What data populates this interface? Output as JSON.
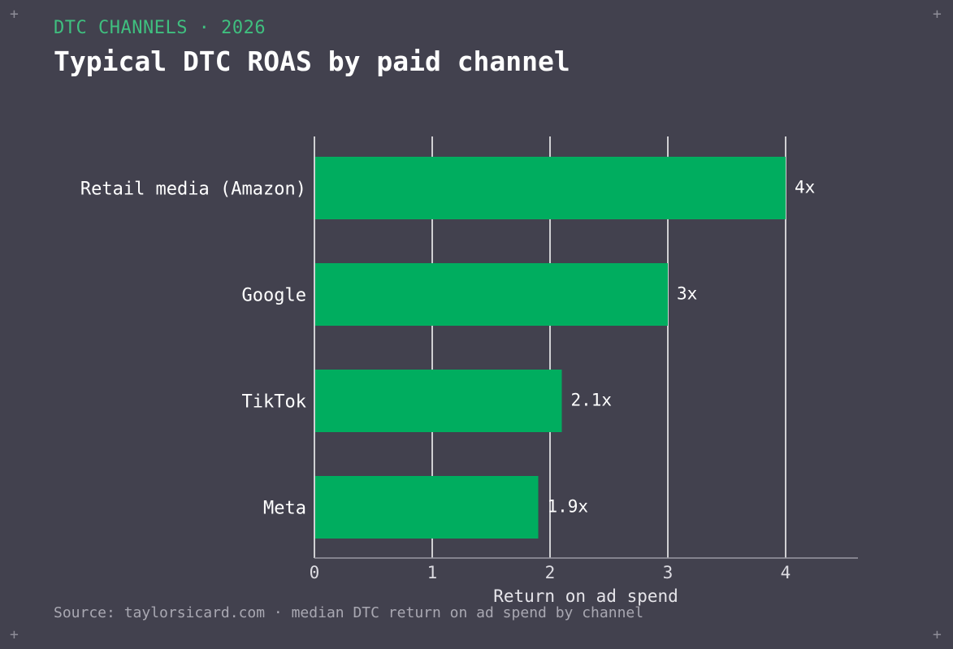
{
  "header": {
    "eyebrow": "DTC CHANNELS · 2026",
    "title": "Typical DTC ROAS by paid channel"
  },
  "footer": {
    "source": "Source: taylorsicard.com · median DTC return on ad spend by channel"
  },
  "colors": {
    "background": "#42414e",
    "bar": "#00ad5f",
    "accent": "#3fbf7f",
    "gridline": "#ffffff",
    "text": "#ffffff"
  },
  "chart_data": {
    "type": "bar",
    "orientation": "horizontal",
    "categories": [
      "Retail media (Amazon)",
      "Google",
      "TikTok",
      "Meta"
    ],
    "values": [
      4,
      3,
      2.1,
      1.9
    ],
    "value_labels": [
      "4x",
      "3x",
      "2.1x",
      "1.9x"
    ],
    "xlabel": "Return on ad spend",
    "xticks": [
      0,
      1,
      2,
      3,
      4
    ],
    "xlim": [
      0,
      4.6
    ],
    "grid": true
  }
}
